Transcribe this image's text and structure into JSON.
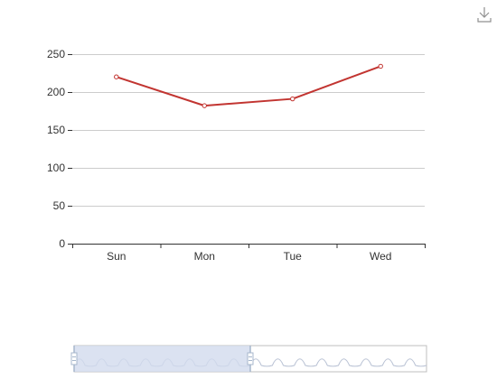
{
  "toolbox": {
    "icon": "download-icon"
  },
  "colors": {
    "line": "#c23531",
    "grid": "#cccccc",
    "axis": "#333333",
    "zoom_selected": "#d2dbee",
    "zoom_border": "#bfbfbf",
    "zoom_wave": "#b9c2d4",
    "handle": "#a7b7cc",
    "toolbox": "#909090"
  },
  "chart_data": {
    "type": "line",
    "categories": [
      "Sun",
      "Mon",
      "Tue",
      "Wed"
    ],
    "series": [
      {
        "values": [
          220,
          182,
          191,
          234
        ]
      }
    ],
    "ylim": [
      0,
      250
    ],
    "yticks": [
      0,
      50,
      100,
      150,
      200,
      250
    ],
    "grid": true,
    "legend": "none",
    "data_zoom": {
      "type": "slider",
      "start_percent": 0,
      "end_percent": 50
    }
  }
}
